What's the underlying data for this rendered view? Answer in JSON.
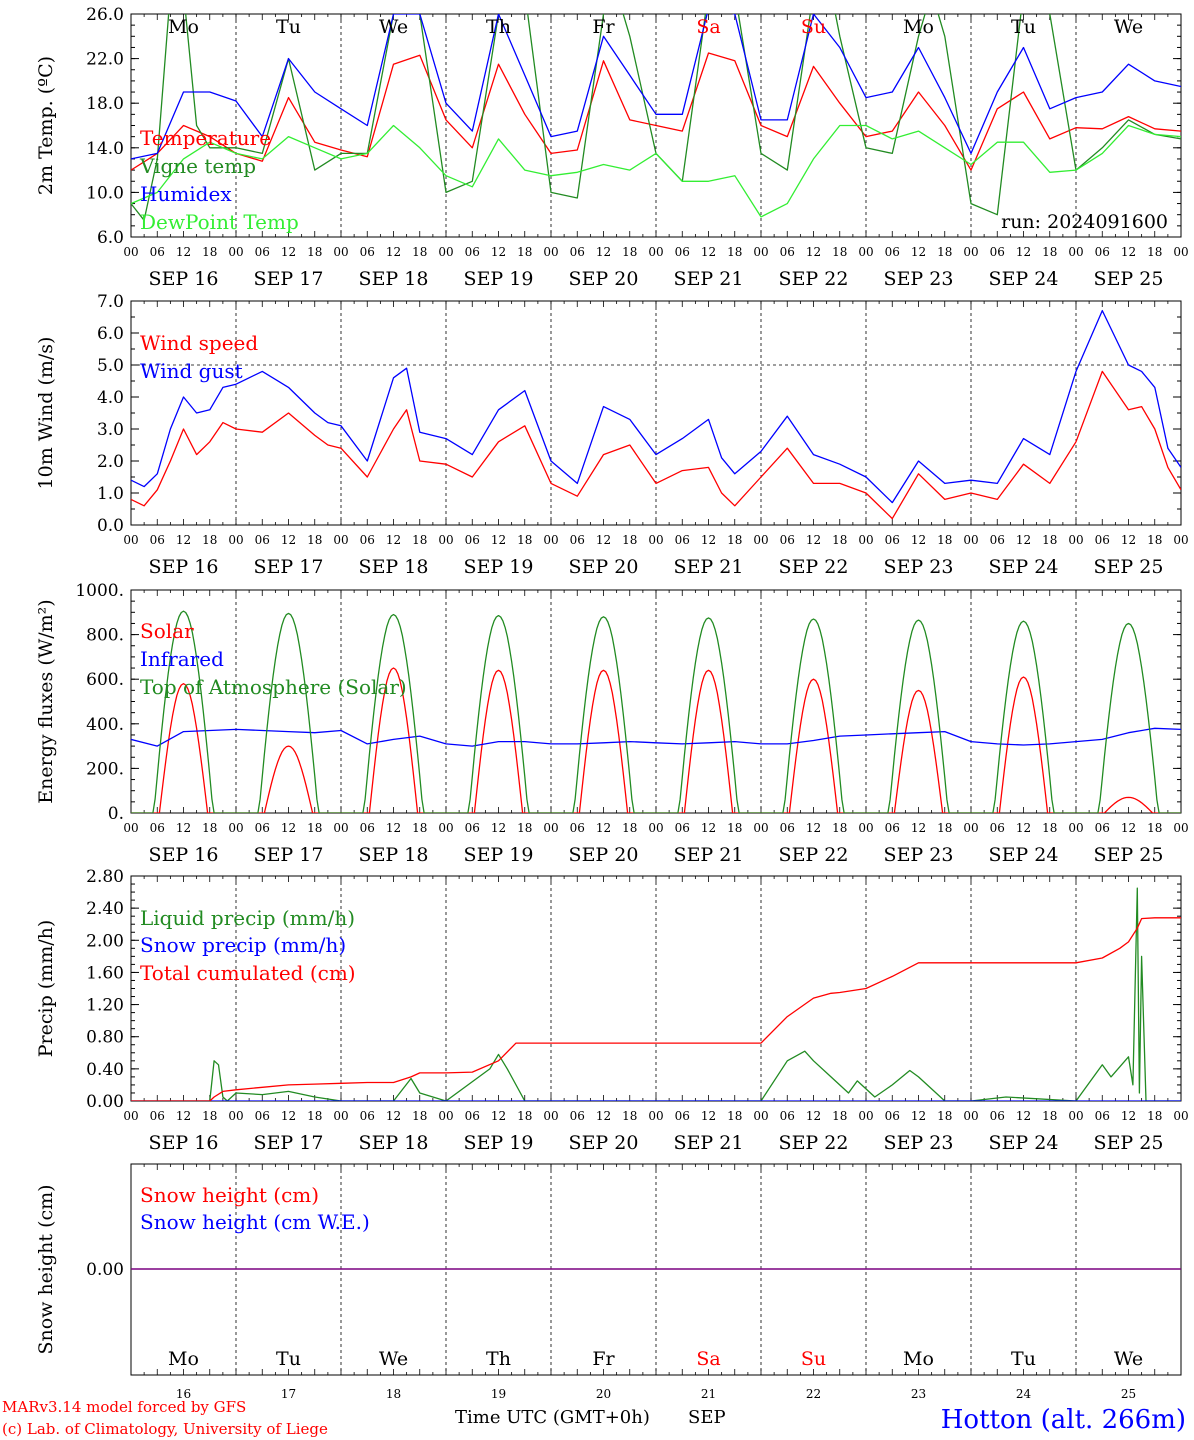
{
  "colors": {
    "red": "#ff0000",
    "green": "#228b22",
    "lime": "#33ee33",
    "blue": "#0000ff",
    "black": "#000000",
    "purple": "#7a0080"
  },
  "hour_ticks": [
    "00",
    "06",
    "12",
    "18"
  ],
  "date_labels": [
    "SEP 16",
    "SEP 17",
    "SEP 18",
    "SEP 19",
    "SEP 20",
    "SEP 21",
    "SEP 22",
    "SEP 23",
    "SEP 24",
    "SEP 25"
  ],
  "weekdays": [
    "Mo",
    "Tu",
    "We",
    "Th",
    "Fr",
    "Sa",
    "Su",
    "Mo",
    "Tu",
    "We"
  ],
  "weekend_flags": [
    false,
    false,
    false,
    false,
    false,
    true,
    true,
    false,
    false,
    false
  ],
  "day_numbers": [
    "16",
    "17",
    "18",
    "19",
    "20",
    "21",
    "22",
    "23",
    "24",
    "25"
  ],
  "footer": {
    "model": "MARv3.14 model forced by GFS",
    "copyright": "(c) Lab. of Climatology, University of Liege",
    "time_axis": "Time UTC (GMT+0h)",
    "month": "SEP",
    "station": "Hotton (alt. 266m)"
  },
  "chart_data": [
    {
      "type": "line",
      "id": "temperature",
      "ylabel": "2m Temp. (ºC)",
      "ylim": [
        6,
        26
      ],
      "yticks": [
        "6.0",
        "10.0",
        "14.0",
        "18.0",
        "22.0",
        "26.0"
      ],
      "annotation": "run: 2024091600",
      "series": [
        {
          "name": "Temperature",
          "color": "#ff0000",
          "x": [
            0,
            6,
            12,
            18,
            24,
            30,
            36,
            42,
            48,
            54,
            60,
            66,
            72,
            78,
            84,
            90,
            96,
            102,
            108,
            114,
            120,
            126,
            132,
            138,
            144,
            150,
            156,
            162,
            168,
            174,
            180,
            186,
            192,
            198,
            204,
            210,
            216,
            222,
            228,
            234,
            240
          ],
          "y": [
            12,
            13.5,
            16,
            15,
            13.5,
            12.8,
            18.5,
            14.5,
            13.8,
            13.2,
            21.5,
            22.3,
            16.5,
            14,
            21.5,
            17,
            13.5,
            13.8,
            21.8,
            16.5,
            16,
            15.5,
            22.5,
            21.8,
            16,
            15,
            21.3,
            18,
            15,
            15.5,
            19,
            16,
            12,
            17.5,
            19,
            14.8,
            15.8,
            15.7,
            16.8,
            15.7,
            15.5
          ]
        },
        {
          "name": "Vigne temp",
          "color": "#228b22",
          "x": [
            0,
            3,
            6,
            9,
            12,
            15,
            18,
            24,
            30,
            36,
            42,
            48,
            54,
            60,
            63,
            66,
            72,
            78,
            84,
            87,
            90,
            96,
            102,
            108,
            111,
            114,
            120,
            126,
            132,
            135,
            138,
            144,
            150,
            156,
            159,
            162,
            168,
            174,
            180,
            183,
            186,
            192,
            198,
            204,
            207,
            210,
            216,
            222,
            228,
            234,
            240
          ],
          "y": [
            9,
            7.5,
            13,
            28,
            28,
            16,
            14,
            14,
            13.5,
            22,
            12,
            13.5,
            13.5,
            26,
            28,
            26,
            10,
            11,
            26,
            30,
            28,
            10,
            9.5,
            26,
            28,
            24,
            13.5,
            11,
            28,
            30,
            28,
            13.5,
            12,
            28,
            30,
            24,
            14,
            13.5,
            24,
            28,
            24,
            9,
            8,
            28,
            30,
            26,
            12,
            14,
            16.5,
            15.2,
            14.8
          ]
        },
        {
          "name": "Humidex",
          "color": "#0000ff",
          "x": [
            0,
            6,
            12,
            18,
            24,
            30,
            36,
            42,
            48,
            54,
            60,
            66,
            72,
            78,
            84,
            90,
            96,
            102,
            108,
            114,
            120,
            126,
            132,
            138,
            144,
            150,
            156,
            162,
            168,
            174,
            180,
            186,
            192,
            198,
            204,
            210,
            216,
            222,
            228,
            234,
            240
          ],
          "y": [
            13,
            13.5,
            19,
            19,
            18.2,
            15,
            22,
            19,
            17.5,
            16,
            26,
            26,
            18,
            15.5,
            26,
            20.5,
            15,
            15.5,
            24,
            20.5,
            17,
            17,
            26.5,
            26,
            16.5,
            16.5,
            26,
            23,
            18.5,
            19,
            23,
            18.5,
            13.5,
            19,
            23,
            17.5,
            18.5,
            19,
            21.5,
            20,
            19.5
          ]
        },
        {
          "name": "DewPoint Temp",
          "color": "#33ee33",
          "x": [
            0,
            6,
            12,
            18,
            24,
            30,
            36,
            42,
            48,
            54,
            60,
            66,
            72,
            78,
            84,
            90,
            96,
            102,
            108,
            114,
            120,
            126,
            132,
            138,
            144,
            150,
            156,
            162,
            168,
            174,
            180,
            186,
            192,
            198,
            204,
            210,
            216,
            222,
            228,
            234,
            240
          ],
          "y": [
            9,
            10,
            13,
            14.5,
            13.5,
            13,
            15,
            14,
            13,
            13.5,
            16,
            14,
            11.5,
            10.5,
            14.8,
            12,
            11.5,
            11.8,
            12.5,
            12,
            13.5,
            11,
            11,
            11.5,
            7.8,
            9,
            13,
            16,
            16,
            14.8,
            15.5,
            14,
            12.5,
            14.5,
            14.5,
            11.8,
            12,
            13.5,
            16,
            15.2,
            15
          ]
        }
      ]
    },
    {
      "type": "line",
      "id": "wind",
      "ylabel": "10m Wind (m/s)",
      "ylim": [
        0,
        7
      ],
      "yticks": [
        "0.0",
        "1.0",
        "2.0",
        "3.0",
        "4.0",
        "5.0",
        "6.0",
        "7.0"
      ],
      "reference_line": 5.0,
      "series": [
        {
          "name": "Wind speed",
          "color": "#ff0000",
          "x": [
            0,
            3,
            6,
            9,
            12,
            15,
            18,
            21,
            24,
            30,
            36,
            42,
            45,
            48,
            54,
            60,
            63,
            66,
            72,
            78,
            84,
            90,
            96,
            102,
            108,
            114,
            120,
            126,
            132,
            135,
            138,
            144,
            150,
            156,
            162,
            168,
            174,
            180,
            186,
            192,
            198,
            204,
            210,
            216,
            222,
            228,
            231,
            234,
            237,
            240
          ],
          "y": [
            0.8,
            0.6,
            1.1,
            2,
            3,
            2.2,
            2.6,
            3.2,
            3,
            2.9,
            3.5,
            2.8,
            2.5,
            2.4,
            1.5,
            3,
            3.6,
            2,
            1.9,
            1.5,
            2.6,
            3.1,
            1.3,
            0.9,
            2.2,
            2.5,
            1.3,
            1.7,
            1.8,
            1,
            0.6,
            1.5,
            2.4,
            1.3,
            1.3,
            1,
            0.2,
            1.6,
            0.8,
            1,
            0.8,
            1.9,
            1.3,
            2.6,
            4.8,
            3.6,
            3.7,
            3,
            1.8,
            1.1
          ]
        },
        {
          "name": "Wind gust",
          "color": "#0000ff",
          "x": [
            0,
            3,
            6,
            9,
            12,
            15,
            18,
            21,
            24,
            30,
            36,
            42,
            45,
            48,
            54,
            60,
            63,
            66,
            72,
            78,
            84,
            90,
            96,
            102,
            108,
            114,
            120,
            126,
            132,
            135,
            138,
            144,
            150,
            156,
            162,
            168,
            174,
            180,
            186,
            192,
            198,
            204,
            210,
            216,
            222,
            228,
            231,
            234,
            237,
            240
          ],
          "y": [
            1.4,
            1.2,
            1.6,
            3,
            4,
            3.5,
            3.6,
            4.3,
            4.4,
            4.8,
            4.3,
            3.5,
            3.2,
            3.1,
            2,
            4.6,
            4.9,
            2.9,
            2.7,
            2.2,
            3.6,
            4.2,
            2,
            1.3,
            3.7,
            3.3,
            2.2,
            2.7,
            3.3,
            2.1,
            1.6,
            2.3,
            3.4,
            2.2,
            1.9,
            1.5,
            0.7,
            2,
            1.3,
            1.4,
            1.3,
            2.7,
            2.2,
            4.8,
            6.7,
            5,
            4.8,
            4.3,
            2.4,
            1.8
          ]
        }
      ]
    },
    {
      "type": "line",
      "id": "energy",
      "ylabel": "Energy fluxes (W/m²)",
      "ylim": [
        0,
        1000
      ],
      "yticks": [
        "0.",
        "200.",
        "400.",
        "600.",
        "800.",
        "1000."
      ],
      "series": [
        {
          "name": "Solar",
          "color": "#ff0000",
          "peak_hours": [
            12,
            36,
            60,
            84,
            108,
            132,
            156,
            180,
            204,
            228
          ],
          "peak_values": [
            580,
            300,
            650,
            640,
            640,
            640,
            600,
            550,
            610,
            70
          ]
        },
        {
          "name": "Infrared",
          "color": "#0000ff",
          "x": [
            0,
            6,
            12,
            18,
            24,
            30,
            36,
            42,
            48,
            54,
            60,
            66,
            72,
            78,
            84,
            90,
            96,
            102,
            108,
            114,
            120,
            126,
            132,
            138,
            144,
            150,
            156,
            162,
            168,
            174,
            180,
            186,
            192,
            198,
            204,
            210,
            216,
            222,
            228,
            234,
            240
          ],
          "y": [
            330,
            300,
            365,
            370,
            375,
            370,
            365,
            360,
            370,
            310,
            330,
            345,
            310,
            300,
            320,
            320,
            310,
            310,
            315,
            320,
            315,
            310,
            315,
            320,
            310,
            310,
            325,
            345,
            350,
            355,
            360,
            365,
            320,
            310,
            305,
            310,
            320,
            330,
            360,
            380,
            375
          ]
        },
        {
          "name": "Top of Atmosphere (Solar)",
          "color": "#228b22",
          "peak_hours": [
            12,
            36,
            60,
            84,
            108,
            132,
            156,
            180,
            204,
            228
          ],
          "peak_values": [
            905,
            895,
            890,
            885,
            880,
            875,
            870,
            865,
            860,
            850
          ]
        }
      ]
    },
    {
      "type": "line",
      "id": "precip",
      "ylabel": "Precip (mm/h)",
      "ylim": [
        0,
        2.8
      ],
      "yticks": [
        "0.00",
        "0.40",
        "0.80",
        "1.20",
        "1.60",
        "2.00",
        "2.40",
        "2.80"
      ],
      "series": [
        {
          "name": "Liquid precip (mm/h)",
          "color": "#228b22",
          "x": [
            0,
            18,
            19,
            20,
            21,
            22,
            24,
            30,
            36,
            42,
            48,
            60,
            64,
            66,
            72,
            82,
            84,
            86,
            90,
            144,
            150,
            154,
            156,
            160,
            164,
            166,
            170,
            174,
            178,
            180,
            186,
            192,
            200,
            216,
            222,
            224,
            228,
            229,
            230,
            230.5,
            231,
            232,
            234,
            240
          ],
          "y": [
            0,
            0,
            0.5,
            0.45,
            0.05,
            0,
            0.1,
            0.08,
            0.12,
            0.05,
            0,
            0,
            0.28,
            0.1,
            0,
            0.4,
            0.58,
            0.4,
            0,
            0,
            0.5,
            0.62,
            0.5,
            0.3,
            0.1,
            0.25,
            0.05,
            0.2,
            0.38,
            0.3,
            0,
            0,
            0.05,
            0,
            0.45,
            0.3,
            0.55,
            0.2,
            2.65,
            0.1,
            1.8,
            0,
            0,
            0
          ]
        },
        {
          "name": "Snow precip (mm/h)",
          "color": "#0000ff",
          "x": [
            0,
            240
          ],
          "y": [
            0,
            0
          ]
        },
        {
          "name": "Total cumulated (cm)",
          "color": "#ff0000",
          "x": [
            0,
            18,
            19,
            21,
            24,
            30,
            36,
            42,
            48,
            54,
            60,
            64,
            66,
            72,
            78,
            84,
            88,
            90,
            96,
            144,
            150,
            156,
            160,
            162,
            168,
            174,
            180,
            186,
            192,
            198,
            204,
            216,
            222,
            226,
            228,
            230,
            231,
            234,
            240
          ],
          "y": [
            0,
            0,
            0.05,
            0.12,
            0.14,
            0.17,
            0.2,
            0.21,
            0.22,
            0.23,
            0.23,
            0.3,
            0.35,
            0.35,
            0.36,
            0.5,
            0.72,
            0.72,
            0.72,
            0.72,
            1.05,
            1.28,
            1.34,
            1.35,
            1.4,
            1.55,
            1.72,
            1.72,
            1.72,
            1.72,
            1.72,
            1.72,
            1.78,
            1.9,
            1.98,
            2.15,
            2.27,
            2.28,
            2.28
          ]
        }
      ]
    },
    {
      "type": "line",
      "id": "snow",
      "ylabel": "Snow height (cm)",
      "yticks": [
        "0.00"
      ],
      "series": [
        {
          "name": "Snow height (cm)",
          "color": "#ff0000",
          "x": [
            0,
            240
          ],
          "y": [
            0,
            0
          ]
        },
        {
          "name": "Snow height (cm W.E.)",
          "color": "#0000ff",
          "x": [
            0,
            240
          ],
          "y": [
            0,
            0
          ]
        }
      ]
    }
  ]
}
